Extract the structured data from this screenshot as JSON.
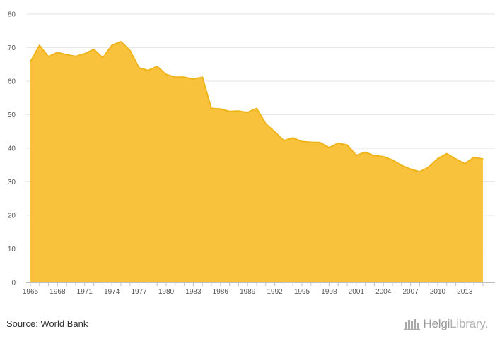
{
  "chart_data": {
    "type": "area",
    "title": "",
    "xlabel": "",
    "ylabel": "",
    "ylim": [
      0,
      80
    ],
    "yticks": [
      0,
      10,
      20,
      30,
      40,
      50,
      60,
      70,
      80
    ],
    "xlim": [
      1965,
      2015
    ],
    "xticks": [
      "1965",
      "1968",
      "1971",
      "1974",
      "1977",
      "1980",
      "1983",
      "1986",
      "1989",
      "1992",
      "1995",
      "1998",
      "2001",
      "2004",
      "2007",
      "2010",
      "2013"
    ],
    "grid": "horizontal",
    "colors": {
      "fill": "#F8C23C",
      "line": "#F0B418",
      "grid": "#E6E6E6"
    },
    "x": [
      1965,
      1966,
      1967,
      1968,
      1969,
      1970,
      1971,
      1972,
      1973,
      1974,
      1975,
      1976,
      1977,
      1978,
      1979,
      1980,
      1981,
      1982,
      1983,
      1984,
      1985,
      1986,
      1987,
      1988,
      1989,
      1990,
      1991,
      1992,
      1993,
      1994,
      1995,
      1996,
      1997,
      1998,
      1999,
      2000,
      2001,
      2002,
      2003,
      2004,
      2005,
      2006,
      2007,
      2008,
      2009,
      2010,
      2011,
      2012,
      2013,
      2014,
      2015
    ],
    "values": [
      65.8,
      70.7,
      67.3,
      68.6,
      67.9,
      67.4,
      68.2,
      69.5,
      67.0,
      70.7,
      71.8,
      69.2,
      64.0,
      63.2,
      64.4,
      62.0,
      61.2,
      61.2,
      60.6,
      61.2,
      51.9,
      51.7,
      51.0,
      51.1,
      50.7,
      51.9,
      47.3,
      44.9,
      42.3,
      43.1,
      42.0,
      41.8,
      41.7,
      40.2,
      41.5,
      41.0,
      37.9,
      38.8,
      37.8,
      37.5,
      36.5,
      34.9,
      33.8,
      33.0,
      34.4,
      36.9,
      38.4,
      36.8,
      35.4,
      37.3,
      36.8
    ]
  },
  "footer": {
    "source": "Source: World Bank",
    "logo_brand": "Helgi",
    "logo_suffix": "Library."
  }
}
